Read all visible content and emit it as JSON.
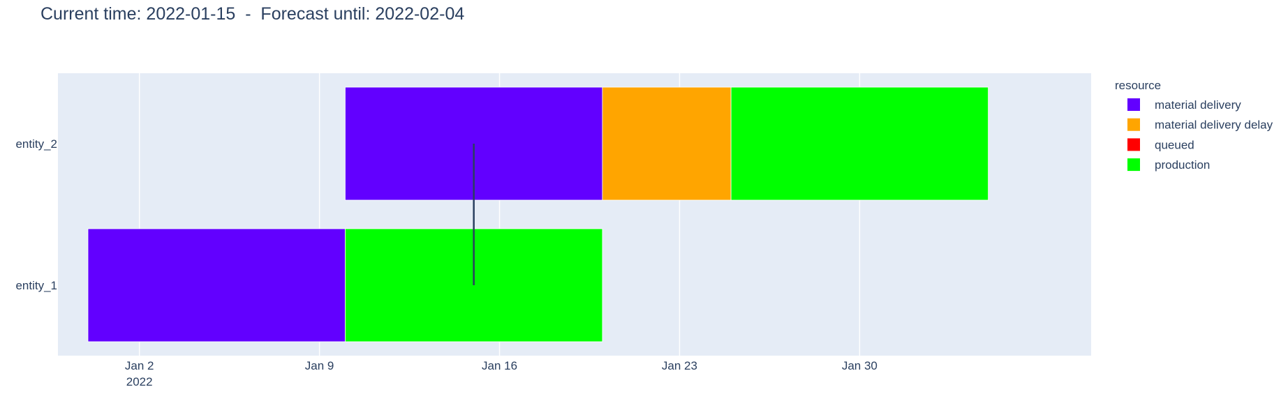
{
  "chart_data": {
    "type": "gantt",
    "title": "Current time: 2022-01-15  -  Forecast until: 2022-02-04",
    "x_axis": {
      "type": "date",
      "range": [
        "2021-12-29T20:00",
        "2022-02-08T00:00"
      ],
      "ticks": [
        {
          "date": "2022-01-02",
          "label": "Jan 2",
          "sublabel": "2022"
        },
        {
          "date": "2022-01-09",
          "label": "Jan 9",
          "sublabel": ""
        },
        {
          "date": "2022-01-16",
          "label": "Jan 16",
          "sublabel": ""
        },
        {
          "date": "2022-01-23",
          "label": "Jan 23",
          "sublabel": ""
        },
        {
          "date": "2022-01-30",
          "label": "Jan 30",
          "sublabel": ""
        }
      ],
      "grid": true
    },
    "y_axis": {
      "type": "category",
      "categories": [
        "entity_1",
        "entity_2"
      ]
    },
    "legend": {
      "title": "resource",
      "placement": "right",
      "items": [
        {
          "name": "material delivery",
          "color": "#6200ff"
        },
        {
          "name": "material delivery delay",
          "color": "#ffa500"
        },
        {
          "name": "queued",
          "color": "#ff0000"
        },
        {
          "name": "production",
          "color": "#00ff00"
        }
      ]
    },
    "tasks": [
      {
        "entity": "entity_1",
        "resource": "material delivery",
        "start": "2021-12-31",
        "end": "2022-01-10"
      },
      {
        "entity": "entity_1",
        "resource": "production",
        "start": "2022-01-10",
        "end": "2022-01-20"
      },
      {
        "entity": "entity_2",
        "resource": "material delivery",
        "start": "2022-01-10",
        "end": "2022-01-20"
      },
      {
        "entity": "entity_2",
        "resource": "material delivery delay",
        "start": "2022-01-20",
        "end": "2022-01-25"
      },
      {
        "entity": "entity_2",
        "resource": "production",
        "start": "2022-01-25",
        "end": "2022-02-04"
      }
    ],
    "current_time_marker": {
      "date": "2022-01-15",
      "color": "#2a3f5f"
    },
    "plot_background": "#e5ecf6",
    "grid_color": "#ffffff",
    "text_color": "#2a3f5f"
  }
}
